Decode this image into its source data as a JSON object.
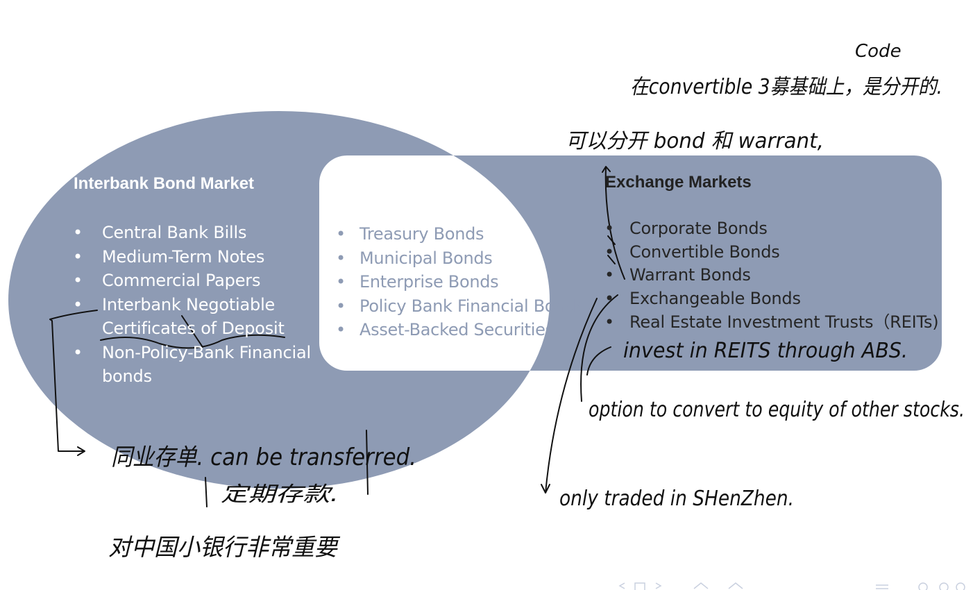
{
  "colors": {
    "interbank_fill": "#8e9bb4",
    "exchange_fill": "#8e9bb4",
    "overlap_fill": "#ffffff",
    "overlap_text": "#8e9bb4",
    "ink": "#111111"
  },
  "interbank": {
    "title": "Interbank Bond Market",
    "items": [
      "Central Bank Bills",
      "Medium-Term Notes",
      "Commercial Papers",
      "Interbank Negotiable Certificates of Deposit",
      "Non-Policy-Bank Financial bonds"
    ]
  },
  "overlap": {
    "items": [
      "Treasury Bonds",
      "Municipal Bonds",
      "Enterprise Bonds",
      "Policy Bank Financial Bonds",
      "Asset-Backed Securities"
    ]
  },
  "exchange": {
    "title": "Exchange Markets",
    "items": [
      "Corporate Bonds",
      "Convertible Bonds",
      "Warrant Bonds",
      "Exchangeable Bonds",
      "Real Estate Investment Trusts（REITs)"
    ]
  },
  "annotations": {
    "code": "Code",
    "convertible_note": "在convertible 3募基础上，是分开的.",
    "warrant_note": "可以分开 bond 和 warrant,",
    "reits_note": "invest in REITS through ABS.",
    "exchangeable_note": "option to convert to equity of other stocks.",
    "shenzhen_note": "only traded in SHenZhen.",
    "ncd_note_1": "同业存单. can be transferred.",
    "ncd_note_2": "定期存款.",
    "ncd_note_3": "对中国小银行非常重要"
  }
}
